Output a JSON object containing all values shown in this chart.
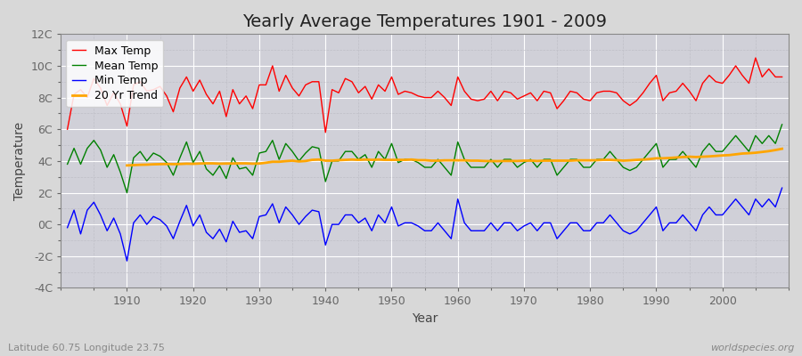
{
  "title": "Yearly Average Temperatures 1901 - 2009",
  "xlabel": "Year",
  "ylabel": "Temperature",
  "subtitle_left": "Latitude 60.75 Longitude 23.75",
  "subtitle_right": "worldspecies.org",
  "years": [
    1901,
    1902,
    1903,
    1904,
    1905,
    1906,
    1907,
    1908,
    1909,
    1910,
    1911,
    1912,
    1913,
    1914,
    1915,
    1916,
    1917,
    1918,
    1919,
    1920,
    1921,
    1922,
    1923,
    1924,
    1925,
    1926,
    1927,
    1928,
    1929,
    1930,
    1931,
    1932,
    1933,
    1934,
    1935,
    1936,
    1937,
    1938,
    1939,
    1940,
    1941,
    1942,
    1943,
    1944,
    1945,
    1946,
    1947,
    1948,
    1949,
    1950,
    1951,
    1952,
    1953,
    1954,
    1955,
    1956,
    1957,
    1958,
    1959,
    1960,
    1961,
    1962,
    1963,
    1964,
    1965,
    1966,
    1967,
    1968,
    1969,
    1970,
    1971,
    1972,
    1973,
    1974,
    1975,
    1976,
    1977,
    1978,
    1979,
    1980,
    1981,
    1982,
    1983,
    1984,
    1985,
    1986,
    1987,
    1988,
    1989,
    1990,
    1991,
    1992,
    1993,
    1994,
    1995,
    1996,
    1997,
    1998,
    1999,
    2000,
    2001,
    2002,
    2003,
    2004,
    2005,
    2006,
    2007,
    2008,
    2009
  ],
  "max_temp": [
    6.0,
    8.2,
    8.5,
    8.0,
    9.2,
    8.6,
    7.5,
    8.3,
    7.6,
    6.2,
    8.8,
    9.0,
    8.4,
    8.5,
    8.7,
    8.1,
    7.1,
    8.6,
    9.3,
    8.4,
    9.1,
    8.2,
    7.6,
    8.4,
    6.8,
    8.5,
    7.6,
    8.1,
    7.3,
    8.8,
    8.8,
    10.0,
    8.4,
    9.4,
    8.6,
    8.1,
    8.8,
    9.0,
    9.0,
    5.8,
    8.5,
    8.3,
    9.2,
    9.0,
    8.3,
    8.7,
    7.9,
    8.8,
    8.4,
    9.3,
    8.2,
    8.4,
    8.3,
    8.1,
    8.0,
    8.0,
    8.4,
    8.0,
    7.5,
    9.3,
    8.4,
    7.9,
    7.8,
    7.9,
    8.4,
    7.8,
    8.4,
    8.3,
    7.9,
    8.1,
    8.3,
    7.8,
    8.4,
    8.3,
    7.3,
    7.8,
    8.4,
    8.3,
    7.9,
    7.8,
    8.3,
    8.4,
    8.4,
    8.3,
    7.8,
    7.5,
    7.8,
    8.3,
    8.9,
    9.4,
    7.8,
    8.3,
    8.4,
    8.9,
    8.4,
    7.8,
    8.9,
    9.4,
    9.0,
    8.9,
    9.4,
    10.0,
    9.4,
    8.9,
    10.5,
    9.3,
    9.8,
    9.3,
    9.3
  ],
  "mean_temp": [
    3.8,
    4.8,
    3.8,
    4.8,
    5.3,
    4.7,
    3.6,
    4.4,
    3.3,
    2.0,
    4.2,
    4.6,
    4.0,
    4.5,
    4.3,
    3.9,
    3.1,
    4.2,
    5.2,
    3.9,
    4.6,
    3.5,
    3.1,
    3.7,
    2.9,
    4.2,
    3.5,
    3.6,
    3.1,
    4.5,
    4.6,
    5.3,
    4.1,
    5.1,
    4.6,
    4.0,
    4.5,
    4.9,
    4.8,
    2.7,
    4.0,
    4.0,
    4.6,
    4.6,
    4.1,
    4.4,
    3.6,
    4.6,
    4.1,
    5.1,
    3.9,
    4.1,
    4.1,
    3.9,
    3.6,
    3.6,
    4.1,
    3.6,
    3.1,
    5.2,
    4.1,
    3.6,
    3.6,
    3.6,
    4.1,
    3.6,
    4.1,
    4.1,
    3.6,
    3.9,
    4.1,
    3.6,
    4.1,
    4.1,
    3.1,
    3.6,
    4.1,
    4.1,
    3.6,
    3.6,
    4.1,
    4.1,
    4.6,
    4.1,
    3.6,
    3.4,
    3.6,
    4.1,
    4.6,
    5.1,
    3.6,
    4.1,
    4.1,
    4.6,
    4.1,
    3.6,
    4.6,
    5.1,
    4.6,
    4.6,
    5.1,
    5.6,
    5.1,
    4.6,
    5.6,
    5.1,
    5.6,
    5.1,
    6.3
  ],
  "min_temp": [
    -0.2,
    0.9,
    -0.6,
    0.9,
    1.4,
    0.6,
    -0.4,
    0.4,
    -0.6,
    -2.3,
    0.1,
    0.6,
    0.0,
    0.5,
    0.3,
    -0.1,
    -0.9,
    0.2,
    1.2,
    -0.1,
    0.6,
    -0.5,
    -0.9,
    -0.3,
    -1.1,
    0.2,
    -0.5,
    -0.4,
    -0.9,
    0.5,
    0.6,
    1.3,
    0.1,
    1.1,
    0.6,
    0.0,
    0.5,
    0.9,
    0.8,
    -1.3,
    0.0,
    0.0,
    0.6,
    0.6,
    0.1,
    0.4,
    -0.4,
    0.6,
    0.1,
    1.1,
    -0.1,
    0.1,
    0.1,
    -0.1,
    -0.4,
    -0.4,
    0.1,
    -0.4,
    -0.9,
    1.6,
    0.1,
    -0.4,
    -0.4,
    -0.4,
    0.1,
    -0.4,
    0.1,
    0.1,
    -0.4,
    -0.1,
    0.1,
    -0.4,
    0.1,
    0.1,
    -0.9,
    -0.4,
    0.1,
    0.1,
    -0.4,
    -0.4,
    0.1,
    0.1,
    0.6,
    0.1,
    -0.4,
    -0.6,
    -0.4,
    0.1,
    0.6,
    1.1,
    -0.4,
    0.1,
    0.1,
    0.6,
    0.1,
    -0.4,
    0.6,
    1.1,
    0.6,
    0.6,
    1.1,
    1.6,
    1.1,
    0.6,
    1.6,
    1.1,
    1.6,
    1.1,
    2.3
  ],
  "trend_start_year": 1910,
  "trend_values": [
    3.72,
    3.74,
    3.76,
    3.77,
    3.79,
    3.8,
    3.81,
    3.8,
    3.81,
    3.83,
    3.82,
    3.84,
    3.85,
    3.85,
    3.83,
    3.84,
    3.84,
    3.85,
    3.85,
    3.83,
    3.84,
    3.89,
    3.95,
    3.95,
    3.99,
    4.02,
    3.97,
    4.0,
    4.07,
    4.09,
    4.02,
    4.02,
    4.05,
    4.07,
    4.09,
    4.07,
    4.09,
    4.07,
    4.09,
    4.07,
    4.07,
    4.07,
    4.07,
    4.09,
    4.05,
    4.05,
    4.02,
    4.02,
    4.04,
    4.04,
    4.04,
    4.04,
    4.02,
    4.02,
    4.0,
    3.99,
    3.99,
    4.0,
    4.0,
    4.0,
    4.02,
    4.02,
    4.0,
    4.02,
    4.02,
    4.02,
    4.02,
    4.02,
    4.04,
    4.04,
    4.04,
    4.05,
    4.07,
    4.07,
    4.05,
    4.02,
    4.04,
    4.07,
    4.09,
    4.12,
    4.17,
    4.17,
    4.19,
    4.22,
    4.25,
    4.27,
    4.25,
    4.27,
    4.29,
    4.32,
    4.35,
    4.37,
    4.42,
    4.47,
    4.49,
    4.52,
    4.57,
    4.62,
    4.69,
    4.77
  ],
  "max_color": "#ff0000",
  "mean_color": "#008000",
  "min_color": "#0000ff",
  "trend_color": "#ffa500",
  "fig_bg_color": "#d8d8d8",
  "plot_bg_color": "#d0d0d8",
  "grid_major_color": "#ffffff",
  "grid_minor_color": "#c0c0c8",
  "ylim": [
    -4,
    12
  ],
  "yticks": [
    -4,
    -2,
    0,
    2,
    4,
    6,
    8,
    10,
    12
  ],
  "ytick_labels": [
    "-4C",
    "-2C",
    "0C",
    "2C",
    "4C",
    "6C",
    "8C",
    "10C",
    "12C"
  ],
  "xlim_start": 1900,
  "xlim_end": 2010,
  "xticks": [
    1910,
    1920,
    1930,
    1940,
    1950,
    1960,
    1970,
    1980,
    1990,
    2000
  ],
  "title_fontsize": 14,
  "axis_label_fontsize": 10,
  "tick_fontsize": 9,
  "legend_fontsize": 9,
  "line_width": 1.0
}
